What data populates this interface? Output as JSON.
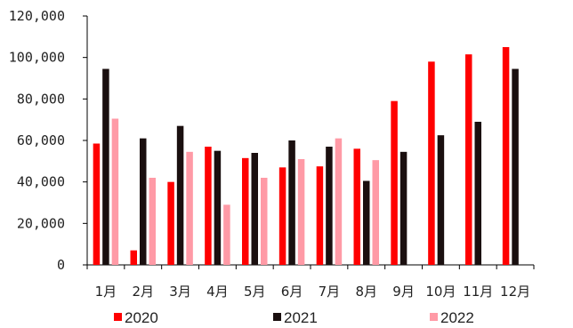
{
  "chart_data": {
    "type": "bar",
    "title": "",
    "xlabel": "",
    "ylabel": "",
    "categories": [
      "1月",
      "2月",
      "3月",
      "4月",
      "5月",
      "6月",
      "7月",
      "8月",
      "9月",
      "10月",
      "11月",
      "12月"
    ],
    "ylim": [
      0,
      120000
    ],
    "y_ticks": [
      0,
      20000,
      40000,
      60000,
      80000,
      100000,
      120000
    ],
    "y_tick_labels": [
      "0",
      "20,000",
      "40,000",
      "60,000",
      "80,000",
      "100,000",
      "120,000"
    ],
    "series": [
      {
        "name": "2020",
        "color": "#ff0000",
        "values": [
          58500,
          7000,
          40000,
          57000,
          51500,
          47000,
          47500,
          56000,
          79000,
          98000,
          101500,
          105000
        ]
      },
      {
        "name": "2021",
        "color": "#1a0f0f",
        "values": [
          94500,
          61000,
          67000,
          55000,
          54000,
          60000,
          57000,
          40500,
          54500,
          62500,
          69000,
          94500
        ]
      },
      {
        "name": "2022",
        "color": "#ff9aa6",
        "values": [
          70500,
          42000,
          54500,
          29000,
          42000,
          51000,
          61000,
          50500,
          null,
          null,
          null,
          null
        ]
      }
    ],
    "grid": false,
    "legend_position": "bottom"
  }
}
